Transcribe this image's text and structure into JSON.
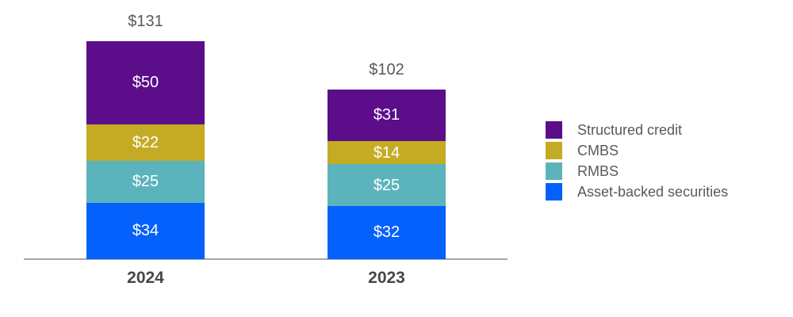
{
  "chart_data": {
    "type": "bar",
    "stacked": true,
    "orientation": "vertical",
    "categories": [
      "2024",
      "2023"
    ],
    "series": [
      {
        "name": "Asset-backed securities",
        "color": "#0561FB",
        "values": [
          34,
          32
        ],
        "labels": [
          "$34",
          "$32"
        ]
      },
      {
        "name": "RMBS",
        "color": "#5BB4BB",
        "values": [
          25,
          25
        ],
        "labels": [
          "$25",
          "$25"
        ]
      },
      {
        "name": "CMBS",
        "color": "#C4AB23",
        "values": [
          22,
          14
        ],
        "labels": [
          "$22",
          "$14"
        ]
      },
      {
        "name": "Structured credit",
        "color": "#5B0D8A",
        "values": [
          50,
          31
        ],
        "labels": [
          "$50",
          "$31"
        ]
      }
    ],
    "totals": [
      131,
      102
    ],
    "total_labels": [
      "$131",
      "$102"
    ],
    "title": "",
    "xlabel": "",
    "ylabel": "",
    "ylim": [
      0,
      140
    ],
    "gridlines": false,
    "axis_baseline_color": "#A6A6A6",
    "segment_label_color": "#ffffff",
    "total_label_color": "#595959",
    "category_label_color": "#474747",
    "legend": {
      "position": "right",
      "text_color": "#595959",
      "items": [
        {
          "label": "Structured credit",
          "color": "#5B0D8A"
        },
        {
          "label": "CMBS",
          "color": "#C4AB23"
        },
        {
          "label": "RMBS",
          "color": "#5BB4BB"
        },
        {
          "label": "Asset-backed securities",
          "color": "#0561FB"
        }
      ]
    }
  }
}
